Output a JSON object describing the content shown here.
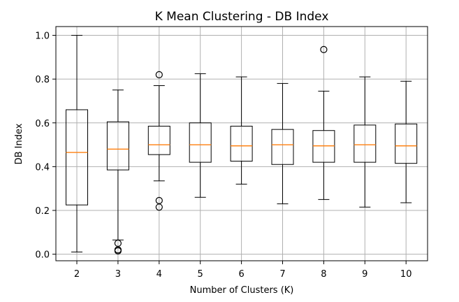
{
  "chart_data": {
    "type": "box",
    "title": "K Mean Clustering - DB Index",
    "xlabel": "Number of Clusters (K)",
    "ylabel": "DB Index",
    "categories": [
      "2",
      "3",
      "4",
      "5",
      "6",
      "7",
      "8",
      "9",
      "10"
    ],
    "ylim": [
      -0.03,
      1.04
    ],
    "yticks": [
      "0.0",
      "0.2",
      "0.4",
      "0.6",
      "0.8",
      "1.0"
    ],
    "grid": true,
    "colors": {
      "box": "#000000",
      "median": "#ff7f0e",
      "grid": "#b0b0b0"
    },
    "boxes": [
      {
        "label": "2",
        "whislo": 0.01,
        "q1": 0.225,
        "med": 0.465,
        "q3": 0.66,
        "whishi": 1.0,
        "fliers": []
      },
      {
        "label": "3",
        "whislo": 0.065,
        "q1": 0.385,
        "med": 0.48,
        "q3": 0.605,
        "whishi": 0.75,
        "fliers": [
          0.05,
          0.02,
          0.015
        ]
      },
      {
        "label": "4",
        "whislo": 0.335,
        "q1": 0.455,
        "med": 0.5,
        "q3": 0.585,
        "whishi": 0.77,
        "fliers": [
          0.82,
          0.245,
          0.215
        ]
      },
      {
        "label": "5",
        "whislo": 0.26,
        "q1": 0.42,
        "med": 0.5,
        "q3": 0.6,
        "whishi": 0.825,
        "fliers": []
      },
      {
        "label": "6",
        "whislo": 0.32,
        "q1": 0.425,
        "med": 0.495,
        "q3": 0.585,
        "whishi": 0.81,
        "fliers": []
      },
      {
        "label": "7",
        "whislo": 0.23,
        "q1": 0.41,
        "med": 0.5,
        "q3": 0.57,
        "whishi": 0.78,
        "fliers": []
      },
      {
        "label": "8",
        "whislo": 0.25,
        "q1": 0.42,
        "med": 0.495,
        "q3": 0.565,
        "whishi": 0.745,
        "fliers": [
          0.935
        ]
      },
      {
        "label": "9",
        "whislo": 0.215,
        "q1": 0.42,
        "med": 0.5,
        "q3": 0.59,
        "whishi": 0.81,
        "fliers": []
      },
      {
        "label": "10",
        "whislo": 0.235,
        "q1": 0.415,
        "med": 0.495,
        "q3": 0.595,
        "whishi": 0.79,
        "fliers": []
      }
    ]
  }
}
